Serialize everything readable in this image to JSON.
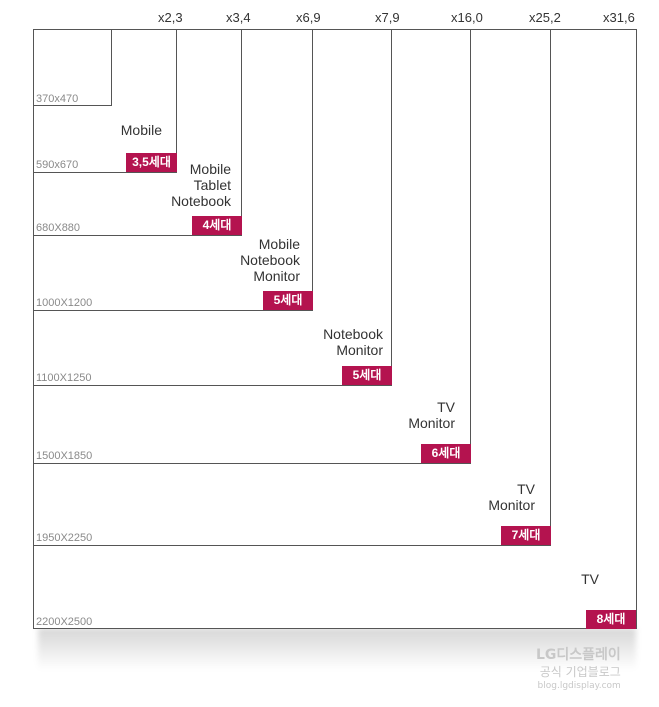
{
  "multipliers": [
    "x2,3",
    "x3,4",
    "x6,9",
    "x7,9",
    "x16,0",
    "x25,2",
    "x31,6"
  ],
  "generations": [
    {
      "size": "370x470"
    },
    {
      "size": "590x670",
      "apps": [
        "Mobile"
      ],
      "badge": "3,5세대"
    },
    {
      "size": "680X880",
      "apps": [
        "Mobile",
        "Tablet",
        "Notebook"
      ],
      "badge": "4세대"
    },
    {
      "size": "1000X1200",
      "apps": [
        "Mobile",
        "Notebook",
        "Monitor"
      ],
      "badge": "5세대"
    },
    {
      "size": "1100X1250",
      "apps": [
        "Notebook",
        "Monitor"
      ],
      "badge": "5세대"
    },
    {
      "size": "1500X1850",
      "apps": [
        "TV",
        "Monitor"
      ],
      "badge": "6세대"
    },
    {
      "size": "1950X2250",
      "apps": [
        "TV",
        "Monitor"
      ],
      "badge": "7세대"
    },
    {
      "size": "2200X2500",
      "apps": [
        "TV"
      ],
      "badge": "8세대"
    }
  ],
  "watermark": {
    "line1": "LG디스플레이",
    "line2": "공식 기업블로그",
    "line3": "blog.lgdisplay.com"
  },
  "colors": {
    "badge": "#b4134f",
    "line": "#555555"
  }
}
